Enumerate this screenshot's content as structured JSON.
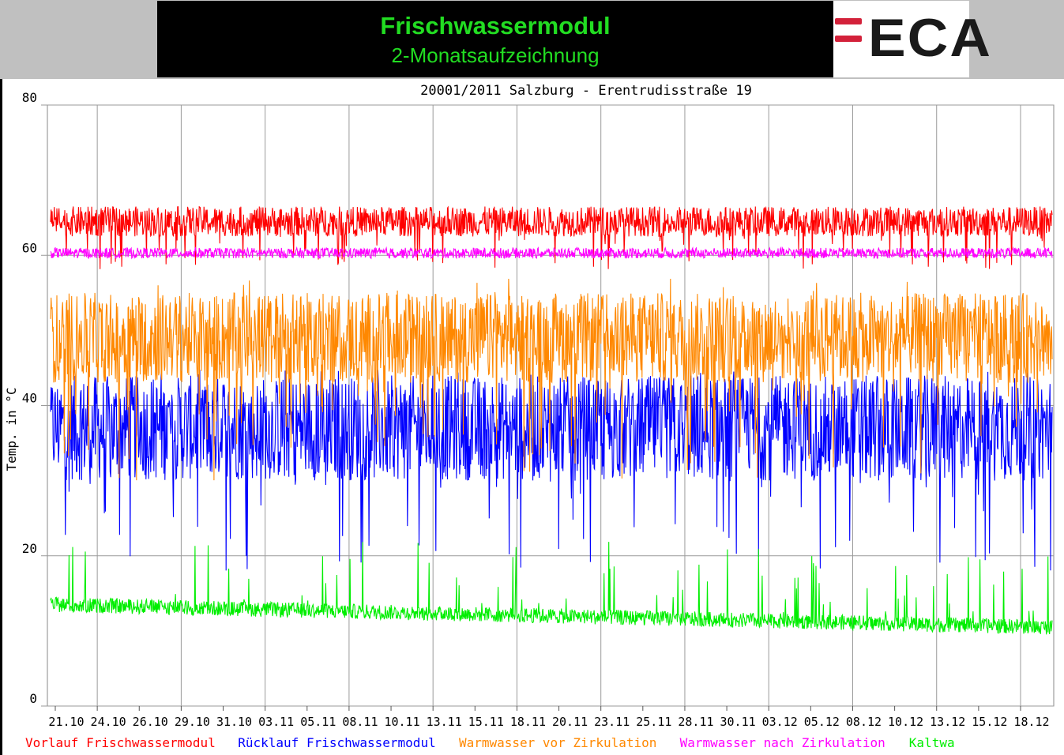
{
  "header": {
    "title": "Frischwassermodul",
    "subtitle": "2-Monatsaufzeichnung",
    "colors": {
      "title_text": "#22dd22",
      "bar_background": "#000000",
      "page_background": "#c0c0c0"
    }
  },
  "logo": {
    "text": "ECA",
    "accent_color": "#d3213a"
  },
  "chart_data": {
    "type": "line",
    "title": "20001/2011 Salzburg - Erentrudisstraße 19",
    "ylabel": "Temp. in °C",
    "xlabel": "",
    "ylim": [
      0,
      80
    ],
    "yticks": [
      0,
      20,
      40,
      60,
      80
    ],
    "grid": true,
    "x_categories": [
      "21.10",
      "24.10",
      "26.10",
      "29.10",
      "31.10",
      "03.11",
      "05.11",
      "08.11",
      "10.11",
      "13.11",
      "15.11",
      "18.11",
      "20.11",
      "23.11",
      "25.11",
      "28.11",
      "30.11",
      "03.12",
      "05.12",
      "08.12",
      "10.12",
      "13.12",
      "15.12",
      "18.12"
    ],
    "legend_position": "bottom",
    "series": [
      {
        "name": "Vorlauf Frischwassermodul",
        "color": "#ff0000",
        "baseline": 64.5,
        "spread": 2.0,
        "dips_to": 58
      },
      {
        "name": "Rücklauf Frischwassermodul",
        "color": "#0000ff",
        "baseline": 37,
        "spread": 7,
        "dips_to": 18,
        "peaks_to": 45
      },
      {
        "name": "Warmwasser vor Zirkulation",
        "color": "#ff8800",
        "baseline": 49,
        "spread": 6,
        "dips_to": 30,
        "peaks_to": 57
      },
      {
        "name": "Warmwasser nach Zirkulation",
        "color": "#ff00ff",
        "baseline": 60.3,
        "spread": 0.7
      },
      {
        "name": "Kaltwa",
        "color": "#00ee00",
        "baseline_start": 13.5,
        "baseline_end": 10.5,
        "spread": 1.0,
        "peaks_to": 22
      }
    ]
  }
}
